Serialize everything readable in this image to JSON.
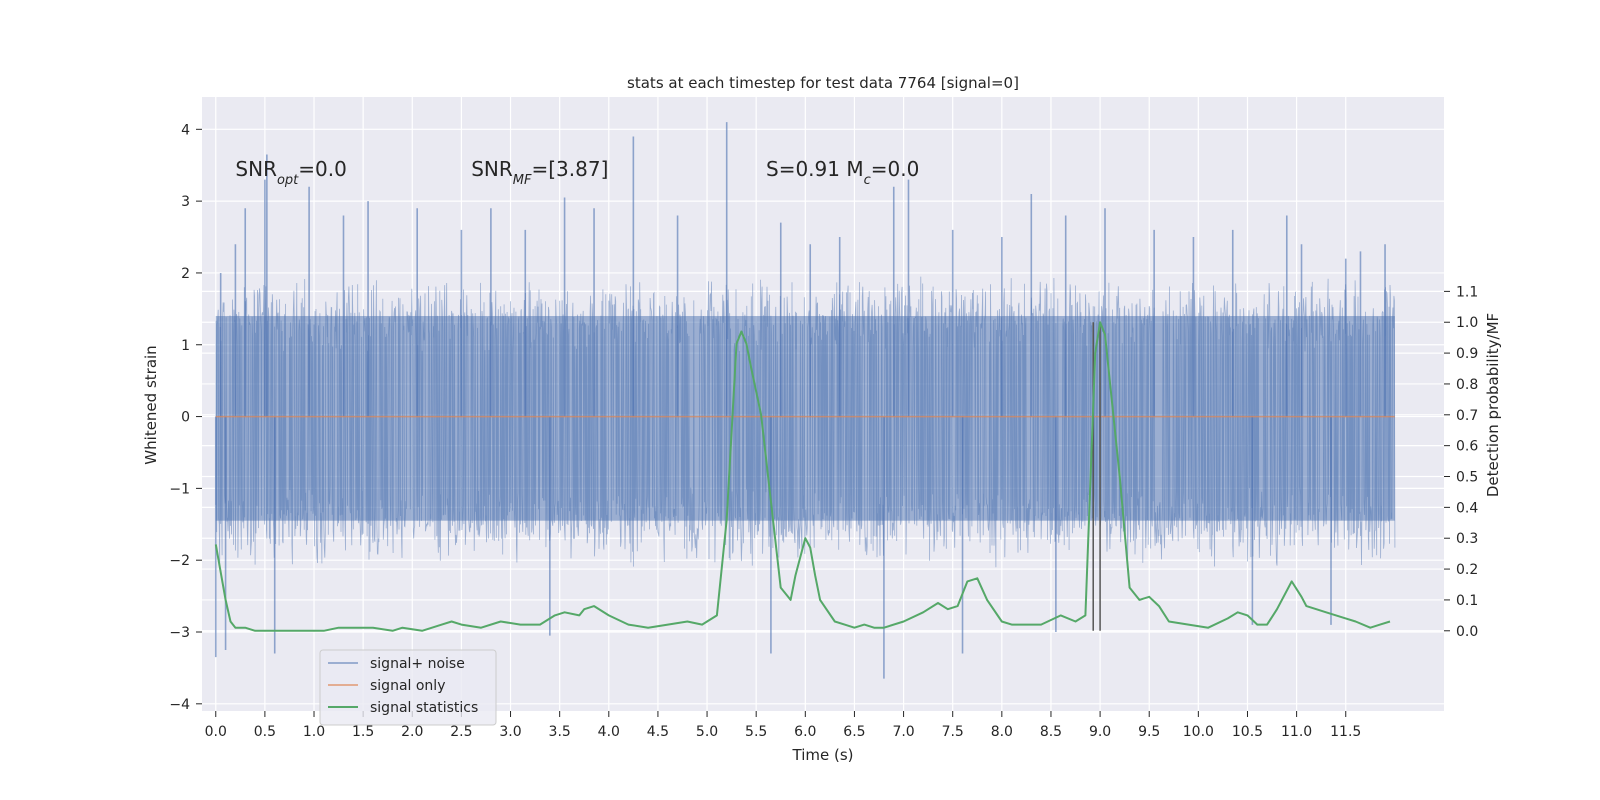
{
  "chart_data": {
    "type": "line",
    "title": "stats at each timestep for test data 7764 [signal=0]",
    "xlabel": "Time (s)",
    "ylabel": "Whitened strain",
    "y2label": "Detection probability/MF",
    "xlim": [
      -0.14,
      12.5
    ],
    "ylim": [
      -4.1,
      4.45
    ],
    "y2lim": [
      -0.26,
      1.73
    ],
    "x_ticks": [
      0.0,
      0.5,
      1.0,
      1.5,
      2.0,
      2.5,
      3.0,
      3.5,
      4.0,
      4.5,
      5.0,
      5.5,
      6.0,
      6.5,
      7.0,
      7.5,
      8.0,
      8.5,
      9.0,
      9.5,
      10.0,
      10.5,
      11.0,
      11.5
    ],
    "x_tick_labels": [
      "0.0",
      "0.5",
      "1.0",
      "1.5",
      "2.0",
      "2.5",
      "3.0",
      "3.5",
      "4.0",
      "4.5",
      "5.0",
      "5.5",
      "6.0",
      "6.5",
      "7.0",
      "7.5",
      "8.0",
      "8.5",
      "9.0",
      "9.5",
      "10.0",
      "10.5",
      "11.0",
      "11.5"
    ],
    "y_ticks": [
      -4,
      -3,
      -2,
      -1,
      0,
      1,
      2,
      3,
      4
    ],
    "y_tick_labels": [
      "−4",
      "−3",
      "−2",
      "−1",
      "0",
      "1",
      "2",
      "3",
      "4"
    ],
    "y2_ticks": [
      0.0,
      0.1,
      0.2,
      0.3,
      0.4,
      0.5,
      0.6,
      0.7,
      0.8,
      0.9,
      1.0,
      1.1
    ],
    "y2_tick_labels": [
      "0.0",
      "0.1",
      "0.2",
      "0.3",
      "0.4",
      "0.5",
      "0.6",
      "0.7",
      "0.8",
      "0.9",
      "1.0",
      "1.1"
    ],
    "grid": true,
    "legend_position": "lower-left",
    "series": [
      {
        "name": "signal+ noise",
        "color": "#4c72b0",
        "x_range": [
          0.0,
          12.0
        ],
        "typical_band": [
          -1.6,
          1.5
        ],
        "spikes": [
          {
            "x": 0.0,
            "y": -3.35
          },
          {
            "x": 0.05,
            "y": 2.0
          },
          {
            "x": 0.1,
            "y": -3.25
          },
          {
            "x": 0.2,
            "y": 2.4
          },
          {
            "x": 0.3,
            "y": 2.9
          },
          {
            "x": 0.5,
            "y": 3.3
          },
          {
            "x": 0.52,
            "y": 3.65
          },
          {
            "x": 0.6,
            "y": -3.3
          },
          {
            "x": 0.95,
            "y": 3.2
          },
          {
            "x": 1.3,
            "y": 2.8
          },
          {
            "x": 1.55,
            "y": 3.0
          },
          {
            "x": 2.05,
            "y": 2.9
          },
          {
            "x": 2.5,
            "y": 2.6
          },
          {
            "x": 2.8,
            "y": 2.9
          },
          {
            "x": 3.15,
            "y": 2.6
          },
          {
            "x": 3.4,
            "y": -3.05
          },
          {
            "x": 3.55,
            "y": 3.05
          },
          {
            "x": 3.85,
            "y": 2.9
          },
          {
            "x": 4.25,
            "y": 3.9
          },
          {
            "x": 4.7,
            "y": 2.8
          },
          {
            "x": 5.2,
            "y": 4.1
          },
          {
            "x": 5.65,
            "y": -3.3
          },
          {
            "x": 5.75,
            "y": 2.7
          },
          {
            "x": 6.05,
            "y": 2.4
          },
          {
            "x": 6.35,
            "y": 2.5
          },
          {
            "x": 6.8,
            "y": -3.65
          },
          {
            "x": 6.9,
            "y": 3.2
          },
          {
            "x": 7.05,
            "y": 3.3
          },
          {
            "x": 7.5,
            "y": 2.6
          },
          {
            "x": 7.6,
            "y": -3.3
          },
          {
            "x": 8.0,
            "y": 2.5
          },
          {
            "x": 8.3,
            "y": 3.1
          },
          {
            "x": 8.55,
            "y": -3.0
          },
          {
            "x": 8.65,
            "y": 2.8
          },
          {
            "x": 9.05,
            "y": 2.9
          },
          {
            "x": 9.55,
            "y": 2.6
          },
          {
            "x": 9.95,
            "y": 2.5
          },
          {
            "x": 10.35,
            "y": 2.6
          },
          {
            "x": 10.55,
            "y": -2.9
          },
          {
            "x": 10.9,
            "y": 2.8
          },
          {
            "x": 11.05,
            "y": 2.4
          },
          {
            "x": 11.35,
            "y": -2.9
          },
          {
            "x": 11.5,
            "y": 2.2
          },
          {
            "x": 11.65,
            "y": 2.3
          },
          {
            "x": 11.9,
            "y": 2.4
          }
        ]
      },
      {
        "name": "signal only",
        "color": "#dd8452",
        "x": [
          0.0,
          12.0
        ],
        "y": [
          0.0,
          0.0
        ]
      },
      {
        "name": "signal statistics",
        "color": "#55a868",
        "axis": "right",
        "x": [
          0.0,
          0.1,
          0.15,
          0.2,
          0.3,
          0.4,
          0.5,
          0.7,
          0.9,
          1.1,
          1.25,
          1.4,
          1.6,
          1.8,
          1.9,
          2.1,
          2.3,
          2.4,
          2.5,
          2.7,
          2.9,
          3.1,
          3.3,
          3.45,
          3.55,
          3.7,
          3.75,
          3.85,
          4.0,
          4.2,
          4.4,
          4.6,
          4.8,
          4.95,
          5.1,
          5.2,
          5.3,
          5.35,
          5.4,
          5.45,
          5.55,
          5.65,
          5.75,
          5.85,
          5.9,
          6.0,
          6.05,
          6.1,
          6.15,
          6.3,
          6.4,
          6.5,
          6.6,
          6.7,
          6.8,
          7.0,
          7.2,
          7.35,
          7.45,
          7.55,
          7.65,
          7.75,
          7.85,
          8.0,
          8.1,
          8.2,
          8.4,
          8.6,
          8.75,
          8.85,
          8.95,
          9.0,
          9.05,
          9.2,
          9.3,
          9.4,
          9.5,
          9.6,
          9.7,
          9.9,
          10.1,
          10.3,
          10.4,
          10.5,
          10.6,
          10.7,
          10.8,
          10.95,
          11.05,
          11.1,
          11.2,
          11.3,
          11.5,
          11.6,
          11.75,
          11.85,
          11.95
        ],
        "y": [
          0.28,
          0.1,
          0.03,
          0.01,
          0.01,
          0.0,
          0.0,
          0.0,
          0.0,
          0.0,
          0.01,
          0.01,
          0.01,
          0.0,
          0.01,
          0.0,
          0.02,
          0.03,
          0.02,
          0.01,
          0.03,
          0.02,
          0.02,
          0.05,
          0.06,
          0.05,
          0.07,
          0.08,
          0.05,
          0.02,
          0.01,
          0.02,
          0.03,
          0.02,
          0.05,
          0.36,
          0.93,
          0.97,
          0.93,
          0.85,
          0.7,
          0.42,
          0.14,
          0.1,
          0.18,
          0.3,
          0.27,
          0.18,
          0.1,
          0.03,
          0.02,
          0.01,
          0.02,
          0.01,
          0.01,
          0.03,
          0.06,
          0.09,
          0.07,
          0.08,
          0.16,
          0.17,
          0.1,
          0.03,
          0.02,
          0.02,
          0.02,
          0.05,
          0.03,
          0.05,
          0.9,
          1.0,
          0.96,
          0.5,
          0.14,
          0.1,
          0.11,
          0.08,
          0.03,
          0.02,
          0.01,
          0.04,
          0.06,
          0.05,
          0.02,
          0.02,
          0.07,
          0.16,
          0.11,
          0.08,
          0.07,
          0.06,
          0.04,
          0.03,
          0.01,
          0.02,
          0.03
        ]
      }
    ],
    "vlines": [
      {
        "x": 8.93,
        "color": "#555555"
      },
      {
        "x": 9.0,
        "color": "#555555"
      }
    ],
    "annotations": [
      {
        "id": "snr-opt",
        "text": "SNR_opt=0.0",
        "x": 0.2,
        "y": 3.35
      },
      {
        "id": "snr-mf",
        "text": "SNR_MF=[3.87]",
        "x": 2.6,
        "y": 3.35
      },
      {
        "id": "s-mc",
        "text": "S=0.91   M_c=0.0",
        "x": 5.6,
        "y": 3.35
      }
    ]
  }
}
